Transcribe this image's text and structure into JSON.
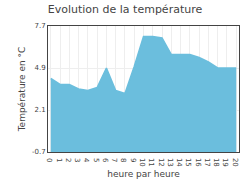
{
  "chart_data": {
    "type": "area",
    "title": "Evolution de la température",
    "x_label": "heure par heure",
    "y_label": "Température en °C",
    "x": [
      0,
      1,
      2,
      3,
      4,
      5,
      6,
      7,
      8,
      9,
      10,
      11,
      12,
      13,
      14,
      15,
      16,
      17,
      18,
      19,
      20
    ],
    "values": [
      4.2,
      3.8,
      3.8,
      3.5,
      3.4,
      3.6,
      4.9,
      3.4,
      3.2,
      5.0,
      7.0,
      7.0,
      6.9,
      5.8,
      5.8,
      5.8,
      5.6,
      5.3,
      4.9,
      4.9,
      4.9
    ],
    "color": "#6bbedd",
    "xlim": [
      -0.3,
      20.3
    ],
    "xticks": [
      0,
      1,
      2,
      3,
      4,
      5,
      6,
      7,
      8,
      9,
      10,
      11,
      12,
      13,
      14,
      15,
      16,
      17,
      18,
      19,
      20
    ],
    "ylim": [
      -0.7,
      7.7
    ],
    "yticks": [
      -0.7,
      2.1,
      4.9,
      7.7
    ],
    "grid": true
  }
}
